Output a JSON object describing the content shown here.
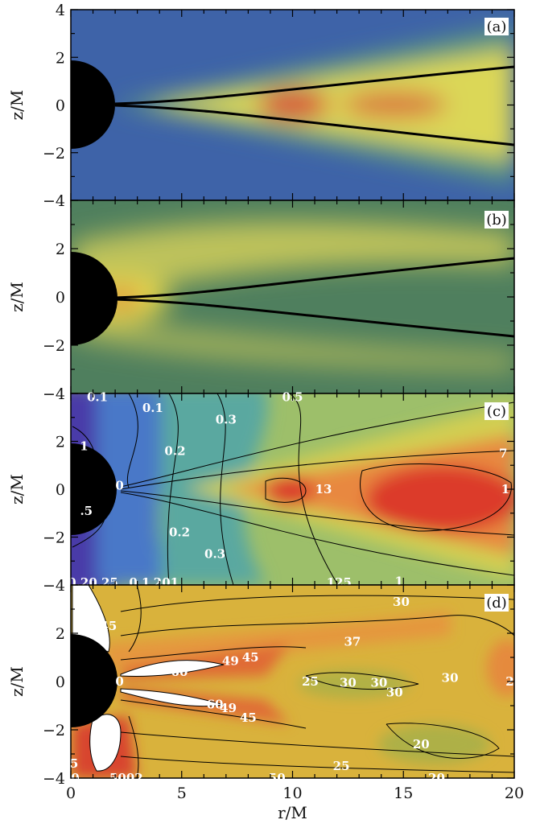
{
  "chart_data": [
    {
      "panel": "(a)",
      "type": "heatmap",
      "xlabel": "",
      "ylabel": "z/M",
      "xlim": [
        0,
        20
      ],
      "ylim": [
        -4,
        4
      ],
      "y_ticks": [
        "4",
        "2",
        "0",
        "−2",
        "−4"
      ],
      "colormap": [
        "#3e63a8",
        "#5a9a7a",
        "#e4d94f",
        "#d6443a"
      ],
      "background_color": "#3e63a8",
      "peaks": [
        {
          "r": 10,
          "z": 0,
          "level": 1.0
        },
        {
          "r": 14,
          "z": 0,
          "level": 0.85
        }
      ],
      "boundary_lines": [
        {
          "name": "upper",
          "points": [
            [
              2.0,
              0.05
            ],
            [
              5,
              0.25
            ],
            [
              10,
              0.7
            ],
            [
              15,
              1.15
            ],
            [
              20,
              1.65
            ]
          ]
        },
        {
          "name": "lower",
          "points": [
            [
              2.0,
              -0.05
            ],
            [
              5,
              -0.25
            ],
            [
              10,
              -0.7
            ],
            [
              15,
              -1.15
            ],
            [
              20,
              -1.65
            ]
          ]
        }
      ],
      "horizon_radius": 2
    },
    {
      "panel": "(b)",
      "type": "heatmap",
      "xlabel": "",
      "ylabel": "z/M",
      "xlim": [
        0,
        20
      ],
      "ylim": [
        -4,
        4
      ],
      "y_ticks": [
        "2",
        "0",
        "−2",
        "−4"
      ],
      "colormap": [
        "#4a7a5a",
        "#e4d94f",
        "#d6443a"
      ],
      "background_color": "#4f7f5e",
      "peaks": [
        {
          "r": 2.3,
          "z": 0,
          "level": 1.0
        }
      ],
      "boundary_lines": [
        {
          "name": "upper",
          "points": [
            [
              2.0,
              0.05
            ],
            [
              5,
              0.25
            ],
            [
              10,
              0.7
            ],
            [
              15,
              1.15
            ],
            [
              20,
              1.65
            ]
          ]
        },
        {
          "name": "lower",
          "points": [
            [
              2.0,
              -0.05
            ],
            [
              5,
              -0.25
            ],
            [
              10,
              -0.7
            ],
            [
              15,
              -1.15
            ],
            [
              20,
              -1.65
            ]
          ]
        }
      ],
      "horizon_radius": 2
    },
    {
      "panel": "(c)",
      "type": "heatmap",
      "xlabel": "",
      "ylabel": "z/M",
      "xlim": [
        0,
        20
      ],
      "ylim": [
        -4,
        4
      ],
      "y_ticks": [
        "2",
        "0",
        "−2",
        "−4"
      ],
      "colormap": [
        "#4a3aa8",
        "#4a78c8",
        "#5aa8a0",
        "#d8d050",
        "#e88840",
        "#dc3a2a"
      ],
      "background_color": "#9dbf6a",
      "contour_labels": [
        {
          "text": "0.1",
          "r": 1.2,
          "z": 3.85
        },
        {
          "text": "0.5",
          "r": 10.0,
          "z": 3.85
        },
        {
          "text": "0.1",
          "r": 3.7,
          "z": 3.4
        },
        {
          "text": "0.3",
          "r": 7.0,
          "z": 2.9
        },
        {
          "text": "1",
          "r": 0.6,
          "z": 1.8
        },
        {
          "text": "0.2",
          "r": 4.7,
          "z": 1.6
        },
        {
          "text": "7",
          "r": 19.5,
          "z": 1.5
        },
        {
          "text": "0",
          "r": 2.2,
          "z": 0.15
        },
        {
          "text": "13",
          "r": 11.4,
          "z": 0.0
        },
        {
          "text": "1",
          "r": 19.6,
          "z": 0.0
        },
        {
          "text": ".5",
          "r": 0.7,
          "z": -0.9
        },
        {
          "text": "0.2",
          "r": 4.9,
          "z": -1.8
        },
        {
          "text": "0.3",
          "r": 6.5,
          "z": -2.7
        },
        {
          "text": "0.20.25",
          "r": 1.0,
          "z": -3.9
        },
        {
          "text": "0.1",
          "r": 3.1,
          "z": -3.9
        },
        {
          "text": "201",
          "r": 4.3,
          "z": -3.9
        },
        {
          "text": "125",
          "r": 12.1,
          "z": -3.9
        },
        {
          "text": "1",
          "r": 14.8,
          "z": -3.85
        }
      ],
      "horizon_radius": 2
    },
    {
      "panel": "(d)",
      "type": "heatmap",
      "xlabel": "r/M",
      "ylabel": "z/M",
      "xlim": [
        0,
        20
      ],
      "ylim": [
        -4,
        4
      ],
      "x_ticks": [
        "0",
        "5",
        "10",
        "15",
        "20"
      ],
      "y_ticks": [
        "2",
        "0",
        "−2",
        "−4"
      ],
      "colormap": [
        "#a8b048",
        "#d8c040",
        "#e89040",
        "#dc3a2a",
        "#ffffff"
      ],
      "background_color": "#d9b23c",
      "contour_labels": [
        {
          "text": "30",
          "r": 14.9,
          "z": 3.3
        },
        {
          "text": "45",
          "r": 1.7,
          "z": 2.3
        },
        {
          "text": "37",
          "r": 12.7,
          "z": 1.65
        },
        {
          "text": "45",
          "r": 8.1,
          "z": 1.0
        },
        {
          "text": "49",
          "r": 7.2,
          "z": 0.85
        },
        {
          "text": "60",
          "r": 4.9,
          "z": 0.4
        },
        {
          "text": "0",
          "r": 2.2,
          "z": 0.0
        },
        {
          "text": "25",
          "r": 10.8,
          "z": 0.0
        },
        {
          "text": "30",
          "r": 12.5,
          "z": -0.05
        },
        {
          "text": "30",
          "r": 13.9,
          "z": -0.05
        },
        {
          "text": "30",
          "r": 14.6,
          "z": -0.45
        },
        {
          "text": "30",
          "r": 17.1,
          "z": 0.15
        },
        {
          "text": "2",
          "r": 19.8,
          "z": 0.0
        },
        {
          "text": "60",
          "r": 6.5,
          "z": -0.95
        },
        {
          "text": "49",
          "r": 7.1,
          "z": -1.1
        },
        {
          "text": "45",
          "r": 8.0,
          "z": -1.5
        },
        {
          "text": "0",
          "r": 1.4,
          "z": -1.8
        },
        {
          "text": "20",
          "r": 15.8,
          "z": -2.6
        },
        {
          "text": "25",
          "r": 12.2,
          "z": -3.5
        },
        {
          "text": "5",
          "r": 0.15,
          "z": -3.4
        },
        {
          "text": "0",
          "r": 0.2,
          "z": -4.0
        },
        {
          "text": "5002",
          "r": 2.5,
          "z": -4.0
        },
        {
          "text": "50",
          "r": 9.3,
          "z": -4.0
        },
        {
          "text": "20",
          "r": 16.5,
          "z": -4.0
        }
      ],
      "horizon_radius": 2
    }
  ]
}
